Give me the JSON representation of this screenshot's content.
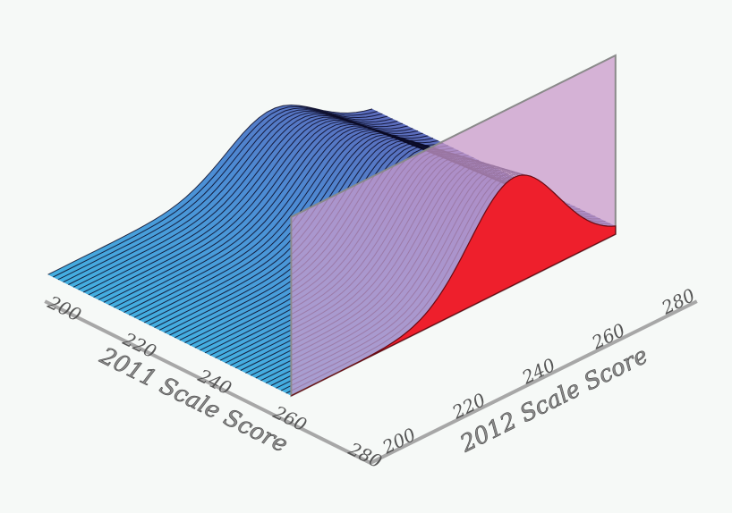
{
  "chart_data": {
    "type": "surface-3d",
    "x_axis": {
      "label": "2011 Scale Score",
      "ticks": [
        "200",
        "220",
        "240",
        "260",
        "280"
      ],
      "range": [
        200,
        280
      ]
    },
    "y_axis": {
      "label": "2012 Scale Score",
      "ticks": [
        "200",
        "220",
        "240",
        "260",
        "280"
      ],
      "range": [
        200,
        280
      ]
    },
    "density_mean_2012": 255,
    "density_sd_2012": 11,
    "slice_at_2011": 260,
    "colors": {
      "surface_low": "#2bbfe6",
      "surface_high": "#7a4f9d",
      "mesh_line": "#0b0b26",
      "slice_plane": "#c99acb",
      "slice_fill": "#ee1f2c",
      "axis": "#a7a7a7"
    }
  }
}
